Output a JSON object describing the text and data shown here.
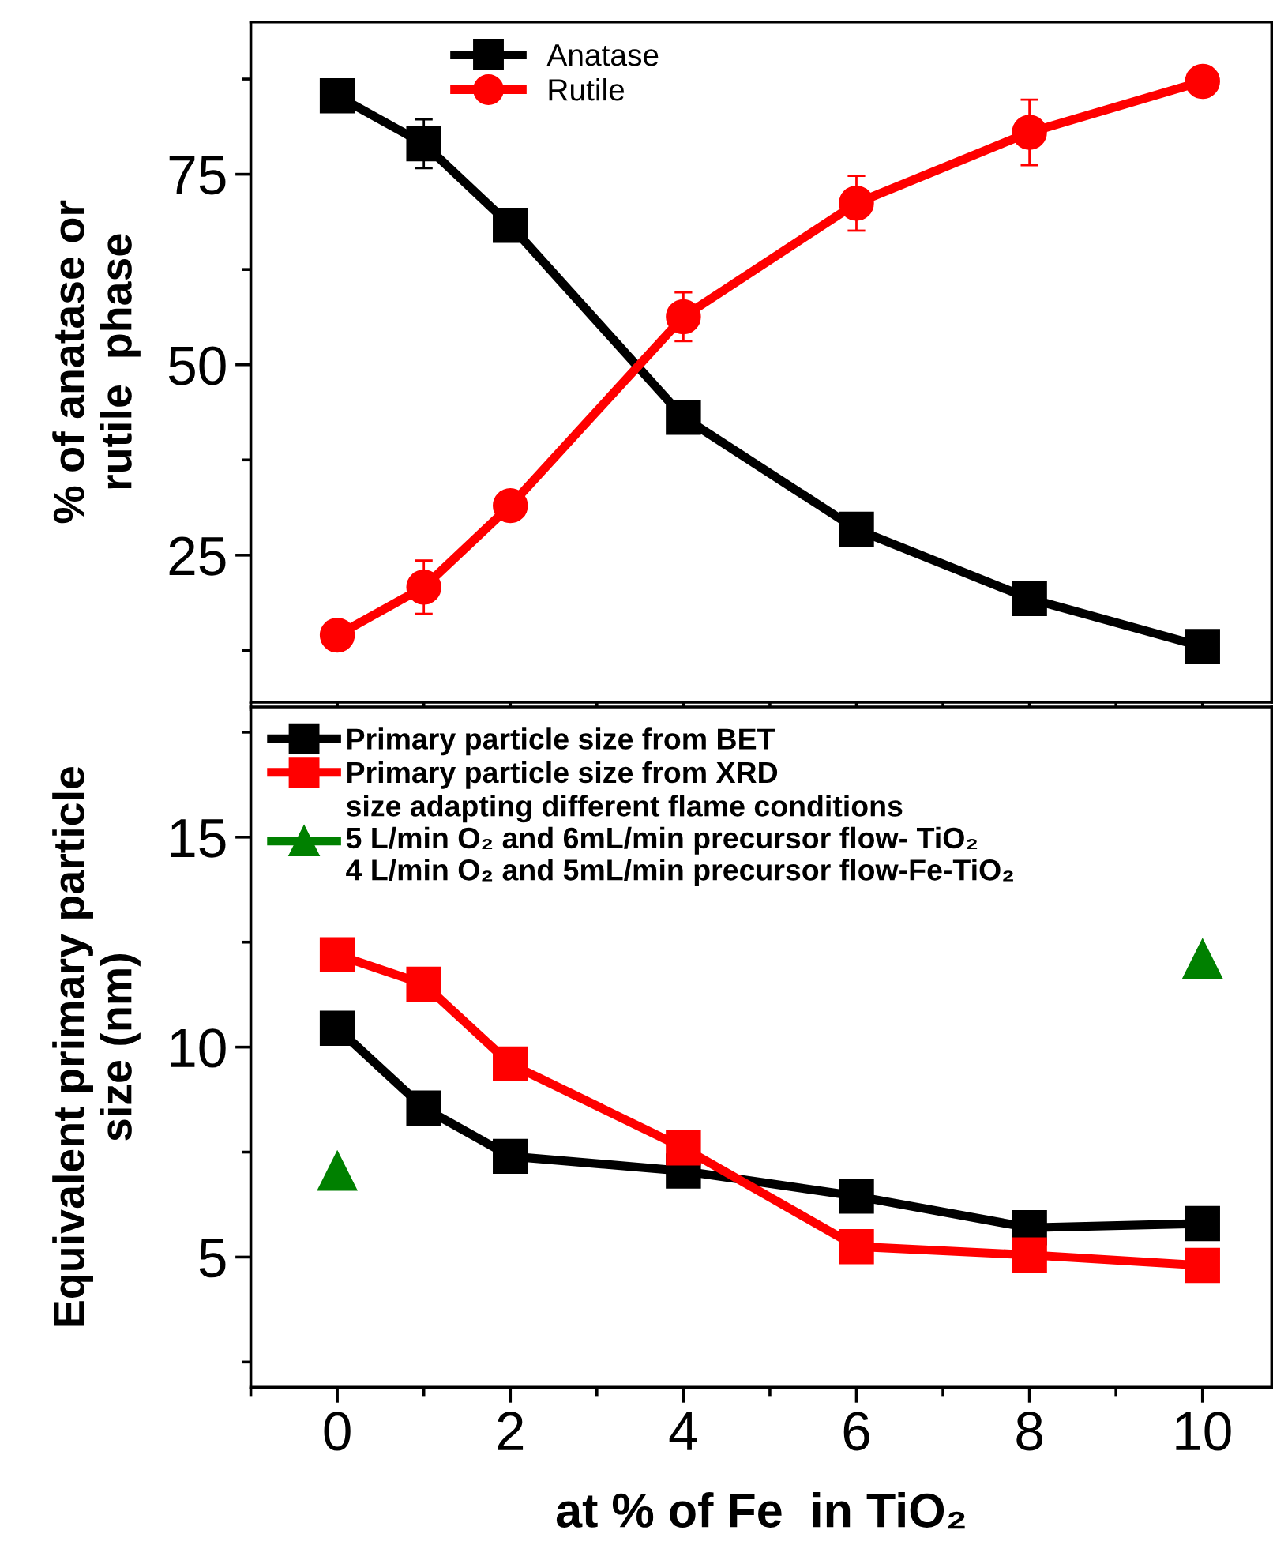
{
  "chart_data": [
    {
      "type": "line",
      "ylabel": "% of anatase or\nrutile  phase",
      "x": [
        0,
        1,
        2,
        4,
        6,
        8,
        10
      ],
      "xlim": [
        -1,
        10.8
      ],
      "xticks": [
        0,
        2,
        4,
        6,
        8,
        10
      ],
      "ylim": [
        5.7,
        95
      ],
      "yticks": [
        25,
        50,
        75
      ],
      "tick_labels": "y",
      "legend": "top",
      "grid": false,
      "line_style": "solid",
      "series": [
        {
          "name": "Anatase",
          "color": "#000000",
          "marker": "square",
          "values": [
            85.3,
            79,
            68.3,
            43.1,
            28.4,
            19.3,
            13
          ],
          "errors": [
            null,
            3.2,
            null,
            1,
            null,
            null,
            null
          ]
        },
        {
          "name": "Rutile",
          "color": "#ff0000",
          "marker": "circle",
          "values": [
            14.5,
            20.8,
            31.5,
            56.3,
            71.2,
            80.5,
            87.2
          ],
          "errors": [
            null,
            3.5,
            null,
            3.2,
            3.6,
            4.3,
            null
          ]
        }
      ]
    },
    {
      "type": "line",
      "ylabel": "Equivalent primary particle\nsize (nm)",
      "xlabel": "at % of Fe  in TiO₂",
      "x": [
        0,
        1,
        2,
        4,
        6,
        8,
        10
      ],
      "xlim": [
        -1,
        10.8
      ],
      "xticks": [
        0,
        2,
        4,
        6,
        8,
        10
      ],
      "ylim": [
        1.9,
        18.1
      ],
      "yticks": [
        5,
        10,
        15
      ],
      "legend": "top left",
      "grid": false,
      "line_style": "solid",
      "series": [
        {
          "name": "Primary particle size from BET",
          "color": "#000000",
          "marker": "square",
          "values": [
            10.45,
            8.55,
            7.4,
            7.05,
            6.45,
            5.7,
            5.8
          ]
        },
        {
          "name": "Primary particle size from XRD",
          "color": "#ff0000",
          "marker": "square",
          "values": [
            12.2,
            11.5,
            9.6,
            7.6,
            5.25,
            5.05,
            4.8
          ]
        },
        {
          "name": "size adapting different flame conditions\n5 L/min O₂ and 6mL/min precursor flow- TiO₂\n4 L/min O₂ and 5mL/min precursor flow-Fe-TiO₂",
          "color": "#008000",
          "type": "scatter",
          "marker": "triangle",
          "x": [
            0,
            10
          ],
          "values": [
            7.05,
            12.1
          ]
        }
      ]
    }
  ]
}
